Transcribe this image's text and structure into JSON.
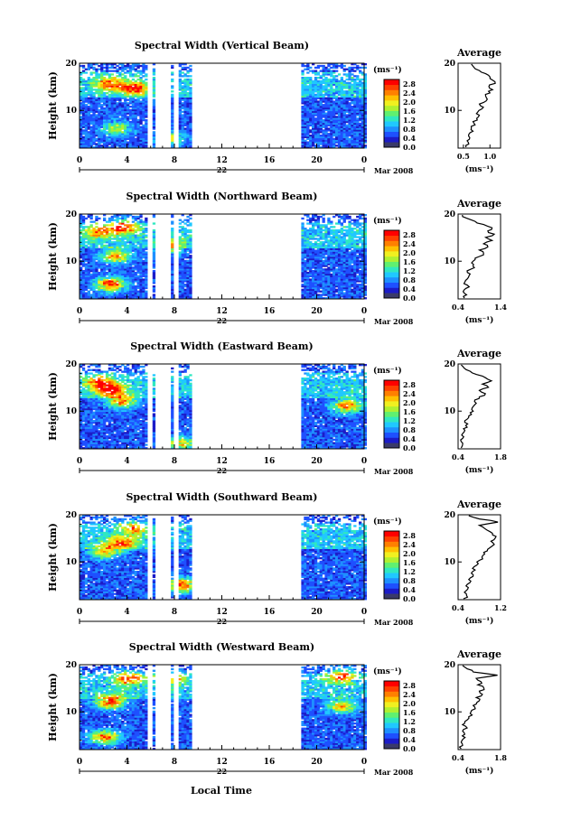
{
  "chart_data": {
    "type": "heatmap",
    "x_title": "Local Time",
    "date_label": "Mar 2008",
    "day_label": "22",
    "ylabel": "Height (km)",
    "x_ticks": [
      "0",
      "4",
      "8",
      "12",
      "16",
      "20",
      "0"
    ],
    "y_ticks": [
      "20",
      "10"
    ],
    "xlim": [
      0,
      24
    ],
    "ylim": [
      2,
      20
    ],
    "data_gaps": [
      [
        5.7,
        6.0
      ],
      [
        6.3,
        7.6
      ],
      [
        7.8,
        8.3
      ],
      [
        9.4,
        18.6
      ]
    ],
    "colorbar": {
      "unit": "(ms⁻¹)",
      "ticks": [
        "2.8",
        "2.4",
        "2.0",
        "1.6",
        "1.2",
        "0.8",
        "0.4",
        "0.0"
      ],
      "colors": [
        "#3a3a6a",
        "#1c1cc8",
        "#1e50ff",
        "#1e90ff",
        "#20c8ff",
        "#30e8c0",
        "#60f070",
        "#b0f030",
        "#f0f020",
        "#ffc000",
        "#ff8000",
        "#ff4000",
        "#ff0000"
      ]
    },
    "average_title": "Average",
    "average_unit": "(ms⁻¹)",
    "panels": [
      {
        "title": "Spectral Width (Vertical Beam)",
        "avg_xticks": [
          "0.5",
          "1.0"
        ],
        "avg_xlim": [
          0.4,
          1.2
        ],
        "avg_profile": [
          0.55,
          0.6,
          0.57,
          0.62,
          0.6,
          0.68,
          0.65,
          0.72,
          0.68,
          0.75,
          0.8,
          0.77,
          0.85,
          0.82,
          0.88,
          0.95,
          0.92,
          1.0,
          1.05,
          0.98,
          1.1,
          1.05,
          1.0,
          0.92,
          0.8,
          0.7,
          0.65
        ],
        "hotspots": [
          [
            4.5,
            14.5,
            2.2
          ],
          [
            2.5,
            15.5,
            1.8
          ],
          [
            7.5,
            4,
            1.5
          ],
          [
            3,
            6,
            1.4
          ]
        ]
      },
      {
        "title": "Spectral Width (Northward Beam)",
        "avg_xticks": [
          "0.4",
          "1.4"
        ],
        "avg_xlim": [
          0.4,
          1.4
        ],
        "avg_profile": [
          0.55,
          0.6,
          0.52,
          0.58,
          0.62,
          0.56,
          0.62,
          0.66,
          0.62,
          0.7,
          0.75,
          0.72,
          0.8,
          0.9,
          1.0,
          0.9,
          1.1,
          1.0,
          1.2,
          1.05,
          1.25,
          1.1,
          1.2,
          1.0,
          0.8,
          0.6,
          0.5
        ],
        "hotspots": [
          [
            2.5,
            5,
            2.6
          ],
          [
            3.5,
            17,
            2.2
          ],
          [
            3,
            11,
            2.0
          ],
          [
            7.5,
            13,
            1.6
          ],
          [
            1.5,
            16,
            1.5
          ]
        ]
      },
      {
        "title": "Spectral Width (Eastward Beam)",
        "avg_xticks": [
          "0.4",
          "1.8"
        ],
        "avg_xlim": [
          0.4,
          1.8
        ],
        "avg_profile": [
          0.5,
          0.55,
          0.5,
          0.55,
          0.52,
          0.6,
          0.58,
          0.65,
          0.62,
          0.7,
          0.75,
          0.8,
          0.85,
          0.9,
          1.0,
          0.95,
          1.1,
          1.3,
          1.1,
          1.4,
          1.2,
          1.5,
          1.3,
          1.0,
          0.8,
          0.6,
          0.5
        ],
        "hotspots": [
          [
            2.5,
            14.5,
            2.4
          ],
          [
            3.5,
            12,
            2.0
          ],
          [
            22.5,
            11,
            2.2
          ],
          [
            8.5,
            3,
            1.6
          ],
          [
            1.5,
            16,
            1.6
          ]
        ]
      },
      {
        "title": "Spectral Width (Southward Beam)",
        "avg_xticks": [
          "0.4",
          "1.2"
        ],
        "avg_xlim": [
          0.4,
          1.2
        ],
        "avg_profile": [
          0.5,
          0.56,
          0.52,
          0.58,
          0.55,
          0.62,
          0.6,
          0.68,
          0.65,
          0.72,
          0.7,
          0.78,
          0.8,
          0.85,
          0.9,
          0.95,
          1.0,
          1.08,
          1.02,
          1.1,
          1.05,
          1.0,
          0.9,
          0.8,
          1.15,
          0.8,
          0.6
        ],
        "hotspots": [
          [
            8.5,
            5,
            2.4
          ],
          [
            3.5,
            14,
            2.0
          ],
          [
            2,
            12,
            1.8
          ],
          [
            4.5,
            17,
            1.7
          ]
        ]
      },
      {
        "title": "Spectral Width (Westward Beam)",
        "avg_xticks": [
          "0.4",
          "1.8"
        ],
        "avg_xlim": [
          0.4,
          1.8
        ],
        "avg_profile": [
          0.5,
          0.55,
          0.5,
          0.56,
          0.54,
          0.6,
          0.58,
          0.65,
          0.62,
          0.7,
          0.75,
          0.8,
          0.85,
          0.95,
          1.0,
          1.1,
          1.0,
          1.2,
          1.1,
          1.25,
          1.05,
          1.15,
          1.0,
          1.7,
          0.9,
          0.7,
          0.55
        ],
        "hotspots": [
          [
            2.5,
            12,
            2.4
          ],
          [
            2,
            4.5,
            2.2
          ],
          [
            4,
            17,
            2.0
          ],
          [
            22,
            17.5,
            2.0
          ],
          [
            22,
            11,
            1.8
          ],
          [
            7.5,
            17,
            1.6
          ]
        ]
      }
    ]
  }
}
